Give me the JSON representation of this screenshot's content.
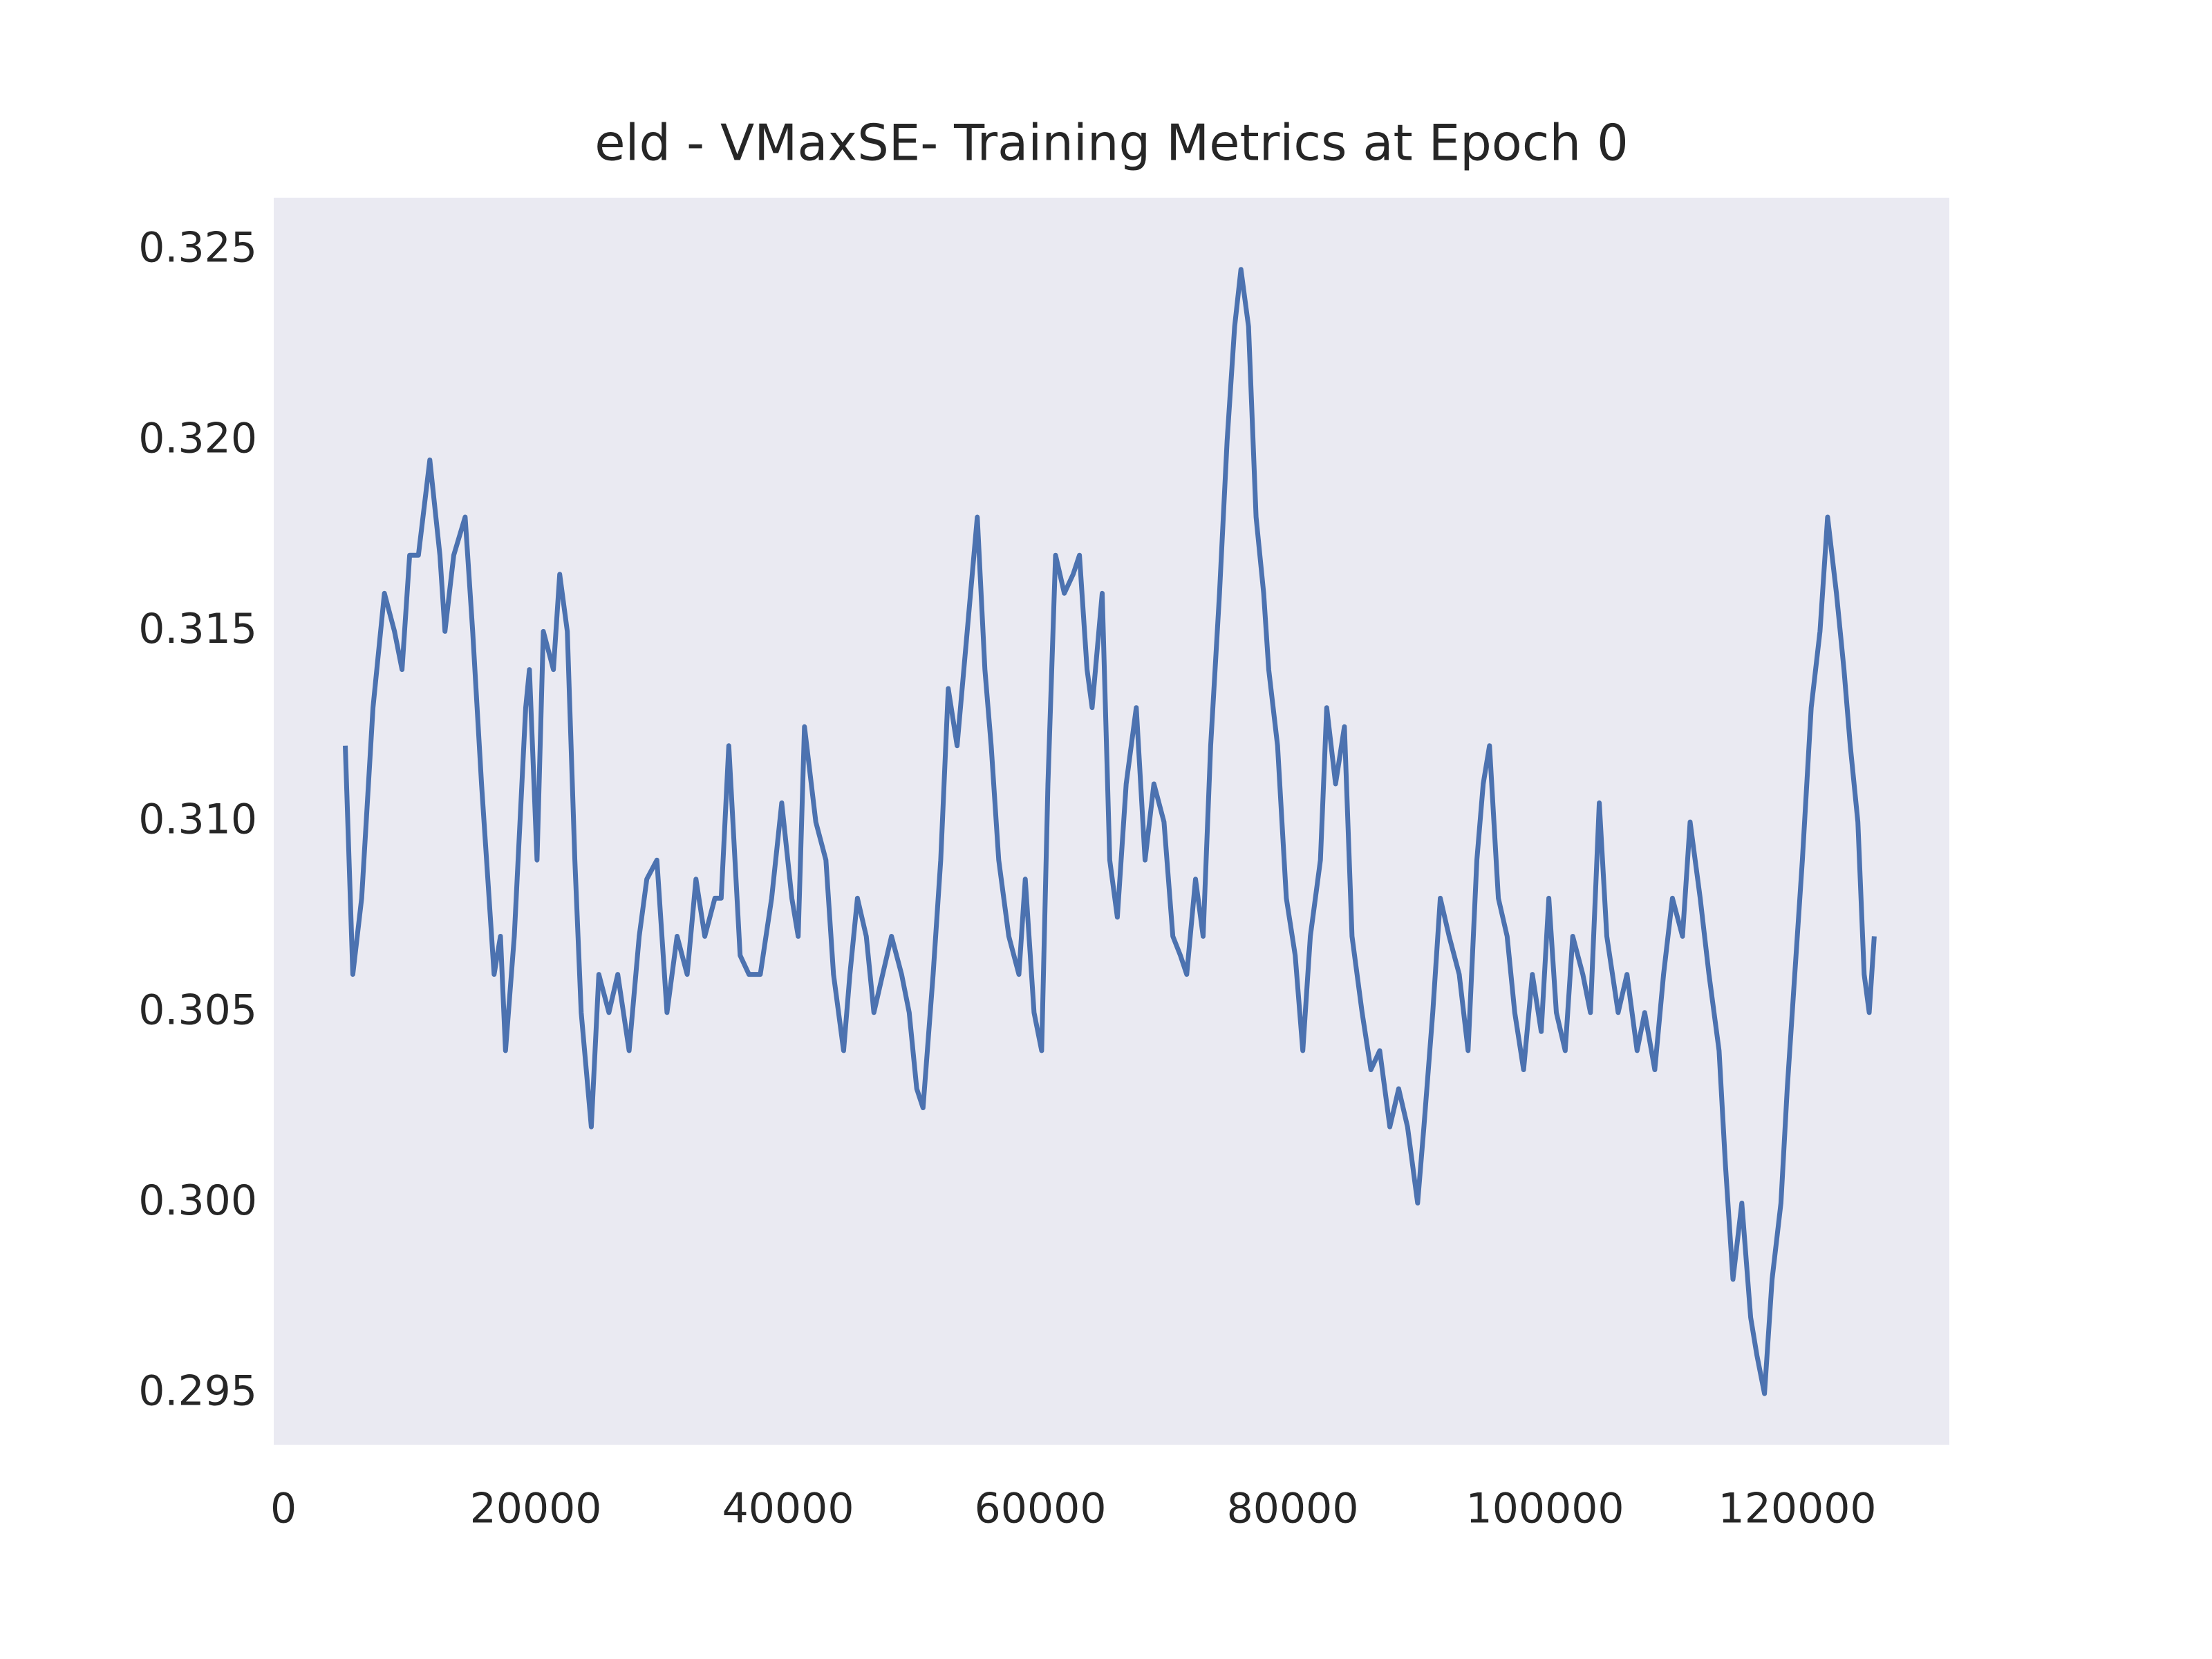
{
  "chart_data": {
    "type": "line",
    "title": "eld - VMaxSE- Training Metrics at Epoch 0",
    "x": [
      4900,
      5500,
      6200,
      7100,
      8000,
      8800,
      9400,
      10000,
      10700,
      11600,
      12400,
      12800,
      13500,
      14400,
      15000,
      15700,
      16100,
      16700,
      17200,
      17600,
      18300,
      19200,
      19500,
      20100,
      20600,
      21400,
      21900,
      22500,
      23100,
      23600,
      24400,
      25000,
      25800,
      26500,
      27400,
      28200,
      28800,
      29600,
      30400,
      31200,
      32000,
      32700,
      33400,
      34200,
      34700,
      35300,
      36200,
      36900,
      37800,
      38700,
      39500,
      40300,
      40800,
      41300,
      42200,
      43000,
      43600,
      44400,
      44900,
      45500,
      46200,
      46800,
      47500,
      48200,
      49000,
      49600,
      50200,
      50700,
      51500,
      52100,
      52700,
      53400,
      54200,
      55000,
      55600,
      56100,
      56700,
      57500,
      58300,
      58800,
      59500,
      60100,
      60600,
      61200,
      61900,
      62600,
      63100,
      63700,
      64100,
      64900,
      65500,
      66100,
      66800,
      67600,
      68300,
      69000,
      69800,
      70500,
      71100,
      71600,
      72300,
      72900,
      73500,
      74200,
      74800,
      75400,
      75900,
      76500,
      77100,
      77700,
      78100,
      78800,
      79500,
      80200,
      80800,
      81400,
      82200,
      82700,
      83400,
      84100,
      84700,
      85500,
      86200,
      86900,
      87700,
      88400,
      89100,
      89900,
      90400,
      91100,
      91700,
      92400,
      93200,
      93900,
      94600,
      95100,
      95600,
      96300,
      97000,
      97600,
      98300,
      99000,
      99700,
      100300,
      100900,
      101600,
      102200,
      103000,
      103600,
      104300,
      104900,
      105800,
      106500,
      107300,
      107900,
      108700,
      109400,
      110100,
      110900,
      111500,
      112300,
      113000,
      113800,
      114300,
      114900,
      115600,
      116300,
      116800,
      117400,
      118000,
      118700,
      119200,
      119800,
      120400,
      121100,
      121800,
      122400,
      123100,
      123700,
      124200,
      124800,
      125300,
      125700,
      126100
    ],
    "series": [
      {
        "color": "#4c72b0",
        "values": [
          0.312,
          0.306,
          0.308,
          0.313,
          0.316,
          0.315,
          0.314,
          0.317,
          0.317,
          0.3195,
          0.317,
          0.315,
          0.317,
          0.318,
          0.315,
          0.311,
          0.309,
          0.306,
          0.307,
          0.304,
          0.307,
          0.313,
          0.314,
          0.309,
          0.315,
          0.314,
          0.3165,
          0.315,
          0.309,
          0.305,
          0.302,
          0.306,
          0.305,
          0.306,
          0.304,
          0.307,
          0.3085,
          0.309,
          0.305,
          0.307,
          0.306,
          0.3085,
          0.307,
          0.308,
          0.308,
          0.312,
          0.3065,
          0.306,
          0.306,
          0.308,
          0.3105,
          0.308,
          0.307,
          0.3125,
          0.31,
          0.309,
          0.306,
          0.304,
          0.306,
          0.308,
          0.307,
          0.305,
          0.306,
          0.307,
          0.306,
          0.305,
          0.303,
          0.3025,
          0.306,
          0.309,
          0.3135,
          0.312,
          0.315,
          0.318,
          0.314,
          0.312,
          0.309,
          0.307,
          0.306,
          0.3085,
          0.305,
          0.304,
          0.311,
          0.317,
          0.316,
          0.3165,
          0.317,
          0.314,
          0.313,
          0.316,
          0.309,
          0.3075,
          0.311,
          0.313,
          0.309,
          0.311,
          0.31,
          0.307,
          0.3065,
          0.306,
          0.3085,
          0.307,
          0.312,
          0.316,
          0.32,
          0.323,
          0.3245,
          0.323,
          0.318,
          0.316,
          0.314,
          0.312,
          0.308,
          0.3065,
          0.304,
          0.307,
          0.309,
          0.313,
          0.311,
          0.3125,
          0.307,
          0.305,
          0.3035,
          0.304,
          0.302,
          0.303,
          0.302,
          0.3,
          0.302,
          0.305,
          0.308,
          0.307,
          0.306,
          0.304,
          0.309,
          0.311,
          0.312,
          0.308,
          0.307,
          0.305,
          0.3035,
          0.306,
          0.3045,
          0.308,
          0.305,
          0.304,
          0.307,
          0.306,
          0.305,
          0.3105,
          0.307,
          0.305,
          0.306,
          0.304,
          0.305,
          0.3035,
          0.306,
          0.308,
          0.307,
          0.31,
          0.308,
          0.306,
          0.304,
          0.301,
          0.298,
          0.3,
          0.297,
          0.296,
          0.295,
          0.298,
          0.3,
          0.303,
          0.306,
          0.309,
          0.313,
          0.315,
          0.318,
          0.316,
          0.314,
          0.312,
          0.31,
          0.306,
          0.305,
          0.307
        ]
      }
    ],
    "xlim": [
      -770,
      132050
    ],
    "ylim": [
      0.29366,
      0.32638
    ],
    "xticks": [
      0,
      20000,
      40000,
      60000,
      80000,
      100000,
      120000
    ],
    "yticks": [
      0.295,
      {
        "value": 0.3,
        "label": "0.300"
      },
      0.305,
      {
        "value": 0.31,
        "label": "0.310"
      },
      0.315,
      {
        "value": 0.32,
        "label": "0.320"
      },
      0.325
    ],
    "grid": false,
    "background": "#eaeaf2"
  }
}
